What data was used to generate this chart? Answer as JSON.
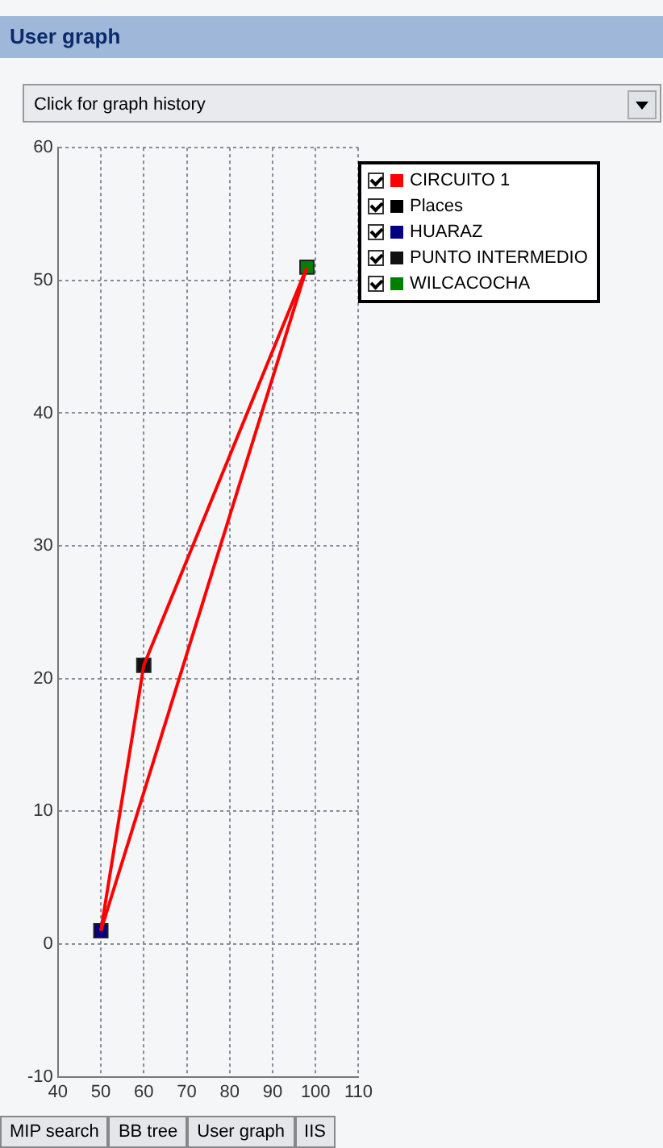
{
  "chart_data": {
    "type": "scatter",
    "title": "User graph",
    "annotations": [
      "Click for graph history",
      "MIP search",
      "BB tree",
      "User graph",
      "IIS"
    ],
    "xlim": [
      40,
      110
    ],
    "xticks": [
      40,
      50,
      60,
      70,
      80,
      90,
      100,
      110
    ],
    "ylim": [
      -10,
      60
    ],
    "yticks": [
      -10,
      0,
      10,
      20,
      30,
      40,
      50,
      60
    ],
    "grid": true,
    "legend": "top right",
    "marker": "square",
    "series": [
      {
        "name": "CIRCUITO 1",
        "type": "line",
        "color": "#ff0000",
        "x": [
          50,
          60,
          98
        ],
        "values": [
          1,
          21,
          51
        ],
        "marker": "none"
      },
      {
        "type": "line",
        "color": "#ff0000",
        "x": [
          50,
          98
        ],
        "values": [
          1,
          51
        ],
        "marker": "none"
      },
      {
        "name": "Places",
        "color": "#000000"
      },
      {
        "name": "HUARAZ",
        "color": "#000080",
        "x": [
          50
        ],
        "values": [
          1
        ]
      },
      {
        "name": "PUNTO INTERMEDIO",
        "color": "#111111",
        "x": [
          60
        ],
        "values": [
          21
        ]
      },
      {
        "name": "WILCACOCHA",
        "color": "#008000",
        "x": [
          98
        ],
        "values": [
          51
        ]
      }
    ]
  }
}
